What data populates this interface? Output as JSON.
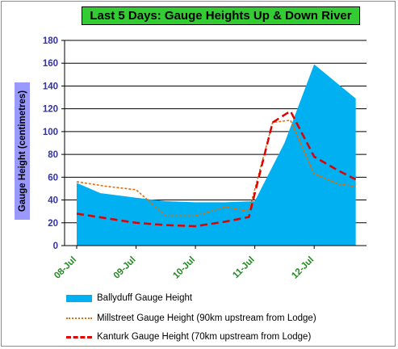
{
  "chart_data": {
    "type": "area",
    "title": "Last 5 Days: Gauge Heights Up & Down River",
    "ylabel": "Gauge Height (centimetres)",
    "xlabel": "",
    "ylim": [
      0,
      180
    ],
    "yticks": [
      0,
      20,
      40,
      60,
      80,
      100,
      120,
      140,
      160,
      180
    ],
    "xlim": [
      0,
      4.8
    ],
    "xticks": [
      {
        "label": "08-Jul",
        "x": 0
      },
      {
        "label": "09-Jul",
        "x": 1
      },
      {
        "label": "10-Jul",
        "x": 2
      },
      {
        "label": "11-Jul",
        "x": 3
      },
      {
        "label": "12-Jul",
        "x": 4
      }
    ],
    "grid": true,
    "legend_placement": "bottom",
    "series": [
      {
        "name": "Ballyduff Gauge Height",
        "kind": "area",
        "color": "#00b0f0",
        "x": [
          0,
          0.4,
          1.0,
          1.5,
          2.0,
          2.5,
          3.0,
          3.5,
          4.0,
          4.7
        ],
        "y": [
          55,
          46,
          42,
          39,
          38,
          38,
          39,
          90,
          159,
          129
        ]
      },
      {
        "name": "Millstreet Gauge Height (90km upstream from Lodge)",
        "kind": "line",
        "style": "dotted",
        "color": "#e36c09",
        "x": [
          0,
          0.5,
          1.0,
          1.5,
          2.0,
          2.5,
          2.9,
          3.3,
          3.6,
          4.0,
          4.4,
          4.7
        ],
        "y": [
          56,
          52,
          49,
          26,
          26,
          34,
          30,
          108,
          110,
          63,
          54,
          52
        ]
      },
      {
        "name": "Kanturk Gauge Height (70km upstream from Lodge)",
        "kind": "line",
        "style": "dashed",
        "color": "#e00000",
        "x": [
          0,
          0.5,
          1.0,
          1.5,
          2.0,
          2.5,
          2.9,
          3.3,
          3.6,
          4.0,
          4.4,
          4.7
        ],
        "y": [
          28,
          24,
          20,
          18,
          17,
          21,
          25,
          108,
          118,
          78,
          66,
          58
        ]
      }
    ]
  }
}
